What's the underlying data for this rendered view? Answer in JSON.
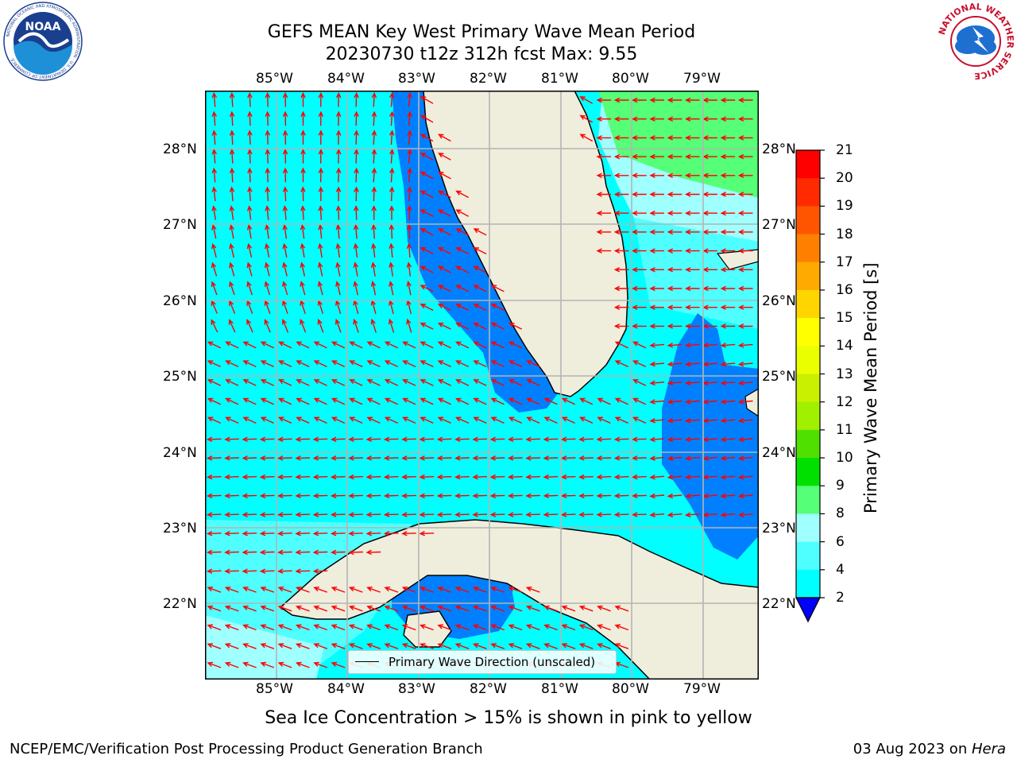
{
  "header": {
    "title_line1": "GEFS MEAN Key West Primary Wave Mean Period",
    "title_line2": "20230730 t12z 312h fcst   Max: 9.55"
  },
  "logos": {
    "left": "NOAA",
    "left_ring": "NATIONAL OCEANIC AND ATMOSPHERIC ADMINISTRATION · U.S. DEPARTMENT OF COMMERCE",
    "right_ring": "NATIONAL WEATHER SERVICE"
  },
  "map": {
    "lon_labels": [
      "85°W",
      "84°W",
      "83°W",
      "82°W",
      "81°W",
      "80°W",
      "79°W"
    ],
    "lat_labels": [
      "28°N",
      "27°N",
      "26°N",
      "25°N",
      "24°N",
      "23°N",
      "22°N"
    ],
    "legend_label": "Primary Wave Direction (unscaled)",
    "colors": {
      "land": "#efeddc",
      "water_low": "#0080ff",
      "water_mid": "#00ffff",
      "water_high": "#4fffff",
      "water_top": "#a0ffff",
      "green": "#55ff77",
      "arrow": "#ff0000"
    }
  },
  "colorbar": {
    "label": "Primary Wave Mean Period [s]",
    "ticks": [
      "21",
      "20",
      "19",
      "18",
      "17",
      "16",
      "15",
      "14",
      "13",
      "12",
      "11",
      "10",
      "9",
      "8",
      "6",
      "4",
      "2"
    ],
    "colors": [
      "#ff0000",
      "#ff2a00",
      "#ff5500",
      "#ff8000",
      "#ffaa00",
      "#ffd500",
      "#ffff00",
      "#eaff00",
      "#c8f000",
      "#a0f000",
      "#50e000",
      "#00e000",
      "#55ff77",
      "#a0ffff",
      "#4fffff",
      "#00ffff",
      "#0080ff"
    ],
    "extend_color": "#0000ff"
  },
  "notes": {
    "sea_ice": "Sea Ice Concentration > 15% is shown in pink to yellow"
  },
  "footer": {
    "left": "NCEP/EMC/Verification Post Processing Product Generation Branch",
    "right_date": "03 Aug 2023 on ",
    "right_host": "Hera"
  }
}
